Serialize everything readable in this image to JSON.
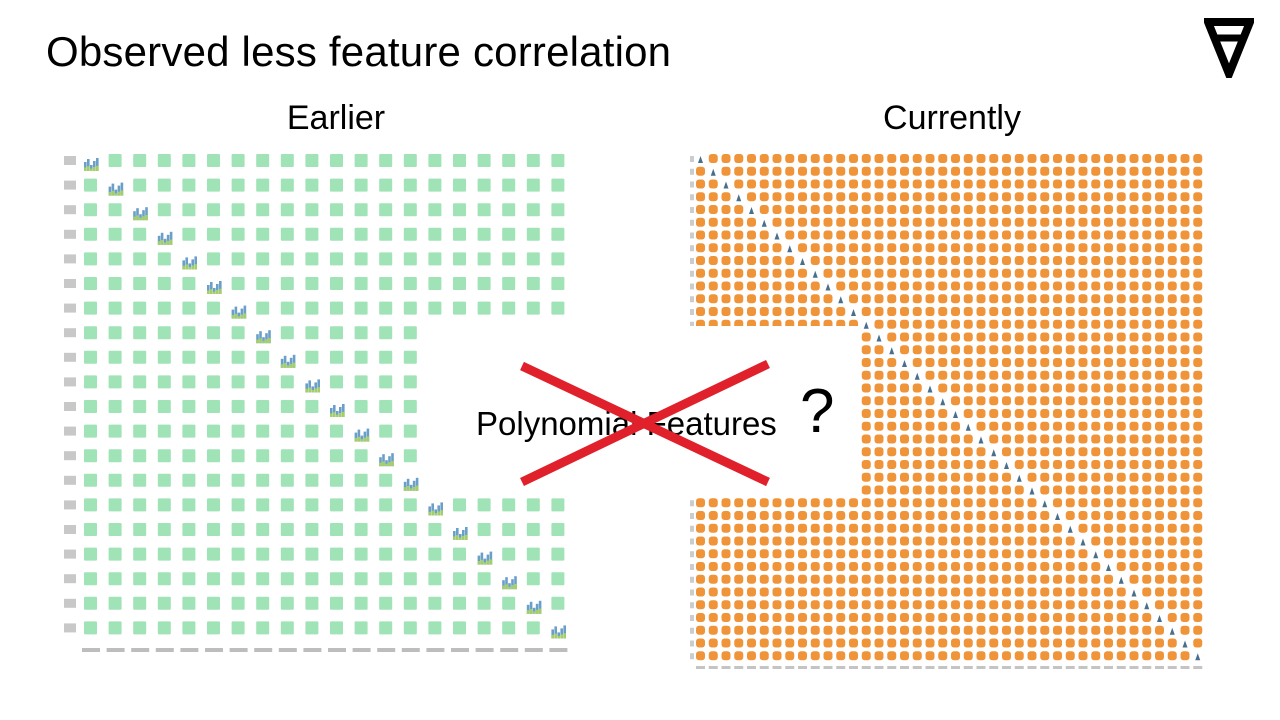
{
  "slide": {
    "title": "Observed less feature correlation",
    "logo_glyph": "A",
    "logo_icon": "inverted-a-logo-icon"
  },
  "panels": {
    "earlier": {
      "heading": "Earlier",
      "grid_size": 20,
      "scatter_color": "#9fe3b6",
      "hist_color": "#6a9fc9",
      "hist_overlay_color": "#a4cf68"
    },
    "currently": {
      "heading": "Currently",
      "grid_size": 40,
      "scatter_color": "#f0943a",
      "hist_color": "#4a6f8a"
    }
  },
  "overlay": {
    "text": "Polynomial Features",
    "question": "?",
    "cross_color": "#e0202a",
    "cross_icon": "red-cross-icon"
  }
}
